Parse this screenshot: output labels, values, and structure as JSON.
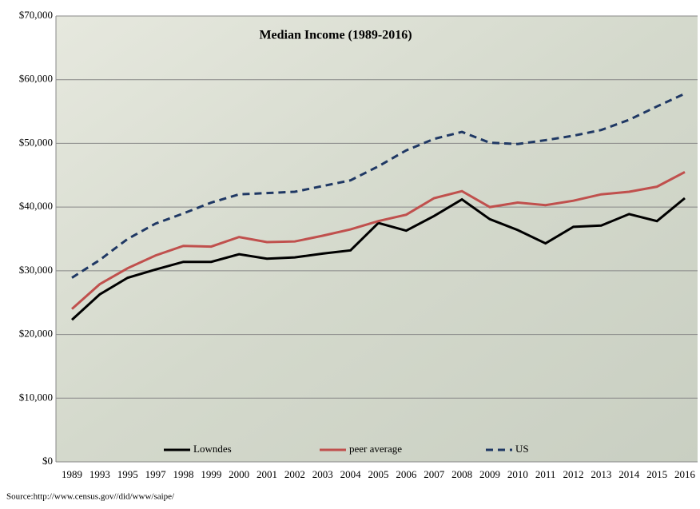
{
  "chart_data": {
    "type": "line",
    "title": "Median Income (1989-2016)",
    "source": "Source:http://www.census.gov//did/www/saipe/",
    "categories": [
      "1989",
      "1993",
      "1995",
      "1997",
      "1998",
      "1999",
      "2000",
      "2001",
      "2002",
      "2003",
      "2004",
      "2005",
      "2006",
      "2007",
      "2008",
      "2009",
      "2010",
      "2011",
      "2012",
      "2013",
      "2014",
      "2015",
      "2016"
    ],
    "series": [
      {
        "name": "Lowndes",
        "color": "#000000",
        "line_style": "solid",
        "values": [
          22300,
          26300,
          28900,
          30200,
          31400,
          31400,
          32600,
          31900,
          32100,
          32700,
          33200,
          37500,
          36300,
          38600,
          41200,
          38100,
          36400,
          34300,
          36900,
          37100,
          38900,
          37800,
          41400
        ]
      },
      {
        "name": "peer average",
        "color": "#c0504d",
        "line_style": "solid",
        "values": [
          24000,
          27900,
          30400,
          32400,
          33900,
          33800,
          35300,
          34500,
          34600,
          35500,
          36500,
          37800,
          38800,
          41400,
          42500,
          40000,
          40700,
          40300,
          41000,
          42000,
          42400,
          43200,
          45500
        ]
      },
      {
        "name": "US",
        "color": "#1f3864",
        "line_style": "dashed",
        "values": [
          28900,
          31700,
          35000,
          37400,
          39000,
          40700,
          42000,
          42200,
          42400,
          43300,
          44200,
          46400,
          48900,
          50700,
          51800,
          50100,
          49900,
          50500,
          51200,
          52100,
          53700,
          55800,
          57800
        ]
      }
    ],
    "ylim": [
      0,
      70000
    ],
    "yticks": [
      {
        "value": 0,
        "label": "$0"
      },
      {
        "value": 10000,
        "label": "$10,000"
      },
      {
        "value": 20000,
        "label": "$20,000"
      },
      {
        "value": 30000,
        "label": "$30,000"
      },
      {
        "value": 40000,
        "label": "$40,000"
      },
      {
        "value": 50000,
        "label": "$50,000"
      },
      {
        "value": 60000,
        "label": "$60,000"
      },
      {
        "value": 70000,
        "label": "$70,000"
      }
    ],
    "grid": true,
    "legend": "bottom"
  }
}
